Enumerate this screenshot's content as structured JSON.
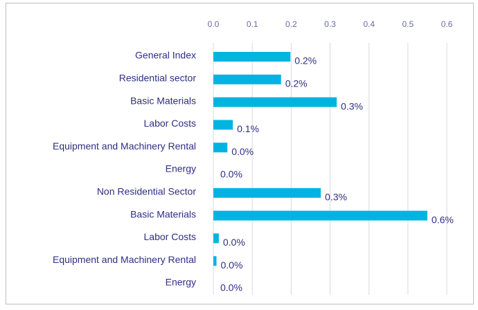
{
  "chart_data": {
    "type": "bar",
    "orientation": "horizontal",
    "categories": [
      "General Index",
      "Residential sector",
      "Basic Materials",
      "Labor Costs",
      "Equipment and Machinery Rental",
      "Energy",
      "Non Residential Sector",
      "Basic Materials",
      "Labor Costs",
      "Equipment and Machinery Rental",
      "Energy"
    ],
    "values": [
      0.198,
      0.174,
      0.317,
      0.05,
      0.036,
      0,
      0.276,
      0.55,
      0.014,
      0.008,
      0
    ],
    "value_labels": [
      "0.2%",
      "0.2%",
      "0.3%",
      "0.1%",
      "0.0%",
      "0.0%",
      "0.3%",
      "0.6%",
      "0.0%",
      "0.0%",
      "0.0%"
    ],
    "color": "#00b4e0",
    "xlim": [
      0,
      0.6
    ],
    "xticks": [
      {
        "value": 0,
        "label": "0.0"
      },
      0.1,
      0.2,
      0.3,
      0.4,
      0.5,
      0.6
    ],
    "grid": true
  }
}
